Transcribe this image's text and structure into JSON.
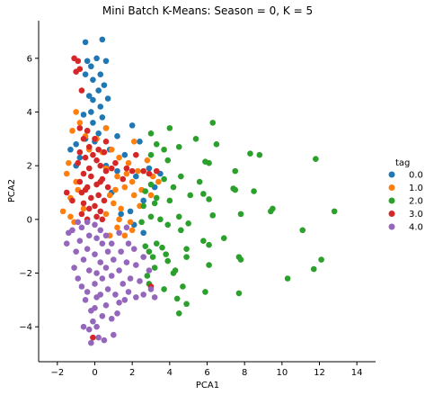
{
  "chart_data": {
    "type": "scatter",
    "title": "Mini Batch K-Means: Season = 0, K = 5",
    "xlabel": "PCA1",
    "ylabel": "PCA2",
    "xlim": [
      -3,
      15
    ],
    "ylim": [
      -5.3,
      7.4
    ],
    "xticks": [
      -2,
      0,
      2,
      4,
      6,
      8,
      10,
      12,
      14
    ],
    "yticks": [
      -4,
      -2,
      0,
      2,
      4,
      6
    ],
    "grid": false,
    "legend": {
      "title": "tag",
      "placement": "right"
    },
    "series": [
      {
        "name": "0.0",
        "color": "#1f77b4",
        "points": [
          [
            -0.5,
            6.6
          ],
          [
            0.4,
            6.7
          ],
          [
            0.1,
            6.0
          ],
          [
            -0.2,
            5.7
          ],
          [
            -0.4,
            5.9
          ],
          [
            0.6,
            5.9
          ],
          [
            0.3,
            5.4
          ],
          [
            -0.5,
            5.4
          ],
          [
            -0.1,
            5.2
          ],
          [
            0.5,
            5.0
          ],
          [
            0.2,
            4.8
          ],
          [
            -0.3,
            4.6
          ],
          [
            0.7,
            4.5
          ],
          [
            -0.1,
            4.45
          ],
          [
            0.3,
            4.2
          ],
          [
            -0.2,
            4.0
          ],
          [
            -0.6,
            3.9
          ],
          [
            0.4,
            3.8
          ],
          [
            -0.1,
            3.6
          ],
          [
            0.6,
            3.4
          ],
          [
            -0.4,
            3.3
          ],
          [
            0.2,
            3.2
          ],
          [
            -0.5,
            3.0
          ],
          [
            0.0,
            2.9
          ],
          [
            1.2,
            3.1
          ],
          [
            2.0,
            3.5
          ],
          [
            2.4,
            2.9
          ],
          [
            -1.0,
            2.8
          ],
          [
            -1.3,
            2.6
          ],
          [
            1.6,
            2.4
          ],
          [
            0.8,
            2.6
          ],
          [
            -0.8,
            2.3
          ],
          [
            2.9,
            1.9
          ],
          [
            2.2,
            1.6
          ],
          [
            1.2,
            1.8
          ],
          [
            0.6,
            2.0
          ],
          [
            2.6,
            0.7
          ],
          [
            1.9,
            0.3
          ],
          [
            0.9,
            1.0
          ],
          [
            1.4,
            0.2
          ],
          [
            2.1,
            -0.2
          ],
          [
            2.6,
            -0.5
          ],
          [
            3.2,
            1.2
          ],
          [
            -1.0,
            2.0
          ],
          [
            3.5,
            1.7
          ]
        ]
      },
      {
        "name": "1.0",
        "color": "#ff7f0e",
        "points": [
          [
            -1.0,
            4.0
          ],
          [
            -0.8,
            3.6
          ],
          [
            -1.2,
            3.3
          ],
          [
            -0.5,
            3.1
          ],
          [
            0.6,
            3.4
          ],
          [
            -1.4,
            2.1
          ],
          [
            -1.5,
            1.7
          ],
          [
            -1.7,
            0.3
          ],
          [
            -1.3,
            0.1
          ],
          [
            -1.3,
            0.8
          ],
          [
            -0.9,
            1.1
          ],
          [
            -1.1,
            -0.1
          ],
          [
            -0.6,
            0.4
          ],
          [
            0.9,
            2.6
          ],
          [
            1.3,
            2.3
          ],
          [
            1.8,
            2.1
          ],
          [
            2.3,
            1.8
          ],
          [
            2.8,
            2.2
          ],
          [
            3.1,
            1.6
          ],
          [
            3.4,
            1.4
          ],
          [
            1.6,
            1.2
          ],
          [
            2.1,
            0.9
          ],
          [
            1.0,
            0.6
          ],
          [
            1.4,
            0.4
          ],
          [
            2.4,
            0.5
          ],
          [
            1.9,
            -0.1
          ],
          [
            1.2,
            -0.3
          ],
          [
            1.6,
            -0.6
          ],
          [
            2.0,
            -0.4
          ],
          [
            0.8,
            -0.6
          ],
          [
            2.1,
            2.9
          ],
          [
            2.0,
            1.4
          ],
          [
            1.2,
            1.6
          ],
          [
            0.6,
            1.9
          ],
          [
            0.4,
            2.5
          ],
          [
            1.7,
            1.7
          ],
          [
            2.5,
            1.1
          ],
          [
            3.0,
            0.9
          ],
          [
            1.1,
            1.1
          ],
          [
            0.8,
            0.9
          ],
          [
            0.6,
            0.2
          ],
          [
            1.3,
            0.0
          ],
          [
            -0.3,
            2.6
          ],
          [
            0.1,
            3.0
          ],
          [
            -1.0,
            1.4
          ]
        ]
      },
      {
        "name": "2.0",
        "color": "#2ca02c",
        "points": [
          [
            6.3,
            3.6
          ],
          [
            4.0,
            3.4
          ],
          [
            3.0,
            3.2
          ],
          [
            5.4,
            3.0
          ],
          [
            3.3,
            2.8
          ],
          [
            6.5,
            2.8
          ],
          [
            3.7,
            2.6
          ],
          [
            4.5,
            2.7
          ],
          [
            8.3,
            2.45
          ],
          [
            8.8,
            2.4
          ],
          [
            3.0,
            2.4
          ],
          [
            3.9,
            2.2
          ],
          [
            5.9,
            2.15
          ],
          [
            6.1,
            2.1
          ],
          [
            11.8,
            2.25
          ],
          [
            7.5,
            1.8
          ],
          [
            4.6,
            1.6
          ],
          [
            3.7,
            1.5
          ],
          [
            5.6,
            1.4
          ],
          [
            3.0,
            1.3
          ],
          [
            4.2,
            1.2
          ],
          [
            7.5,
            1.1
          ],
          [
            8.5,
            1.05
          ],
          [
            7.4,
            1.15
          ],
          [
            2.7,
            1.05
          ],
          [
            5.8,
            0.95
          ],
          [
            3.3,
            0.8
          ],
          [
            6.1,
            0.75
          ],
          [
            5.1,
            0.9
          ],
          [
            4.0,
            0.7
          ],
          [
            2.6,
            0.5
          ],
          [
            3.2,
            0.6
          ],
          [
            12.8,
            0.3
          ],
          [
            9.5,
            0.4
          ],
          [
            9.4,
            0.3
          ],
          [
            7.8,
            0.2
          ],
          [
            6.3,
            0.15
          ],
          [
            3.0,
            0.1
          ],
          [
            4.5,
            0.1
          ],
          [
            3.5,
            0.0
          ],
          [
            5.0,
            -0.15
          ],
          [
            2.5,
            -0.1
          ],
          [
            3.9,
            -0.2
          ],
          [
            4.6,
            -0.4
          ],
          [
            11.1,
            -0.4
          ],
          [
            6.9,
            -0.7
          ],
          [
            5.8,
            -0.8
          ],
          [
            6.1,
            -0.95
          ],
          [
            4.9,
            -1.1
          ],
          [
            3.6,
            -1.05
          ],
          [
            3.3,
            -0.9
          ],
          [
            3.8,
            -1.3
          ],
          [
            4.9,
            -1.4
          ],
          [
            2.7,
            -1.0
          ],
          [
            7.7,
            -1.4
          ],
          [
            7.8,
            -1.5
          ],
          [
            12.1,
            -1.5
          ],
          [
            2.9,
            -1.2
          ],
          [
            6.1,
            -1.7
          ],
          [
            4.3,
            -1.9
          ],
          [
            4.2,
            -2.0
          ],
          [
            11.7,
            -1.85
          ],
          [
            3.2,
            -1.8
          ],
          [
            2.8,
            -2.1
          ],
          [
            10.3,
            -2.2
          ],
          [
            2.9,
            -2.4
          ],
          [
            4.7,
            -2.5
          ],
          [
            3.7,
            -2.6
          ],
          [
            5.9,
            -2.7
          ],
          [
            7.7,
            -2.75
          ],
          [
            4.4,
            -2.95
          ],
          [
            4.9,
            -3.15
          ],
          [
            4.5,
            -3.5
          ],
          [
            3.9,
            -1.55
          ],
          [
            3.1,
            -1.4
          ]
        ]
      },
      {
        "name": "3.0",
        "color": "#d62728",
        "points": [
          [
            -1.1,
            6.0
          ],
          [
            -0.9,
            5.9
          ],
          [
            -0.8,
            5.6
          ],
          [
            -1.0,
            5.5
          ],
          [
            -0.7,
            4.8
          ],
          [
            -0.8,
            3.4
          ],
          [
            -0.4,
            3.3
          ],
          [
            -0.6,
            3.0
          ],
          [
            0.0,
            3.0
          ],
          [
            -0.3,
            2.7
          ],
          [
            0.2,
            2.6
          ],
          [
            -0.8,
            2.5
          ],
          [
            0.5,
            2.5
          ],
          [
            -0.5,
            2.3
          ],
          [
            0.1,
            2.2
          ],
          [
            -0.9,
            2.1
          ],
          [
            0.3,
            2.0
          ],
          [
            -0.3,
            1.9
          ],
          [
            0.6,
            1.8
          ],
          [
            -0.6,
            1.7
          ],
          [
            0.9,
            1.9
          ],
          [
            -0.2,
            1.6
          ],
          [
            0.4,
            1.5
          ],
          [
            -0.8,
            1.4
          ],
          [
            0.1,
            1.3
          ],
          [
            -0.4,
            1.2
          ],
          [
            0.7,
            1.2
          ],
          [
            -0.7,
            1.0
          ],
          [
            0.2,
            0.9
          ],
          [
            -0.2,
            0.8
          ],
          [
            0.5,
            0.7
          ],
          [
            -0.6,
            0.6
          ],
          [
            0.0,
            0.5
          ],
          [
            -0.3,
            0.4
          ],
          [
            0.3,
            0.3
          ],
          [
            -0.7,
            0.2
          ],
          [
            0.1,
            0.1
          ],
          [
            -0.4,
            0.0
          ],
          [
            0.4,
            0.0
          ],
          [
            1.1,
            2.1
          ],
          [
            1.7,
            1.9
          ],
          [
            2.0,
            1.8
          ],
          [
            2.6,
            1.8
          ],
          [
            2.9,
            1.7
          ],
          [
            3.3,
            1.8
          ],
          [
            2.2,
            2.4
          ],
          [
            1.5,
            1.5
          ],
          [
            -1.5,
            1.0
          ],
          [
            -1.2,
            0.7
          ],
          [
            3.0,
            -2.5
          ],
          [
            -0.1,
            -4.4
          ],
          [
            0.3,
            1.4
          ],
          [
            -0.1,
            2.4
          ],
          [
            0.6,
            2.9
          ],
          [
            -0.5,
            1.1
          ]
        ]
      },
      {
        "name": "4.0",
        "color": "#9467bd",
        "points": [
          [
            -1.5,
            -0.9
          ],
          [
            -1.2,
            -0.4
          ],
          [
            -1.0,
            -1.2
          ],
          [
            -1.1,
            -1.8
          ],
          [
            -0.9,
            -2.2
          ],
          [
            -0.7,
            -0.3
          ],
          [
            -0.8,
            -0.8
          ],
          [
            -0.6,
            -1.5
          ],
          [
            -0.7,
            -2.5
          ],
          [
            -0.5,
            -3.0
          ],
          [
            -0.4,
            -0.1
          ],
          [
            -0.3,
            -0.6
          ],
          [
            -0.4,
            -1.1
          ],
          [
            -0.3,
            -1.9
          ],
          [
            -0.4,
            -2.7
          ],
          [
            -0.2,
            -3.4
          ],
          [
            -0.1,
            -3.8
          ],
          [
            -0.3,
            -4.1
          ],
          [
            -0.2,
            -4.6
          ],
          [
            0.0,
            -0.2
          ],
          [
            0.1,
            -0.7
          ],
          [
            0.0,
            -1.3
          ],
          [
            0.1,
            -2.0
          ],
          [
            0.0,
            -2.4
          ],
          [
            0.1,
            -2.9
          ],
          [
            0.0,
            -3.3
          ],
          [
            0.1,
            -4.0
          ],
          [
            0.3,
            -0.4
          ],
          [
            0.4,
            -0.9
          ],
          [
            0.3,
            -1.6
          ],
          [
            0.4,
            -2.2
          ],
          [
            0.3,
            -2.8
          ],
          [
            0.4,
            -3.6
          ],
          [
            0.6,
            -0.6
          ],
          [
            0.7,
            -1.2
          ],
          [
            0.6,
            -1.8
          ],
          [
            0.7,
            -2.6
          ],
          [
            0.6,
            -3.2
          ],
          [
            0.9,
            -0.9
          ],
          [
            1.0,
            -1.5
          ],
          [
            0.9,
            -2.1
          ],
          [
            1.1,
            -2.8
          ],
          [
            0.9,
            -3.7
          ],
          [
            1.0,
            -4.3
          ],
          [
            1.3,
            -0.5
          ],
          [
            1.4,
            -1.2
          ],
          [
            1.3,
            -1.9
          ],
          [
            1.5,
            -2.4
          ],
          [
            1.3,
            -3.1
          ],
          [
            1.7,
            -0.3
          ],
          [
            1.8,
            -0.9
          ],
          [
            1.7,
            -1.6
          ],
          [
            1.9,
            -2.2
          ],
          [
            1.8,
            -2.7
          ],
          [
            2.1,
            -1.1
          ],
          [
            2.2,
            -1.7
          ],
          [
            2.4,
            -2.3
          ],
          [
            2.6,
            -1.4
          ],
          [
            2.9,
            -1.9
          ],
          [
            3.0,
            -2.6
          ],
          [
            2.6,
            -2.8
          ],
          [
            3.2,
            -2.9
          ],
          [
            2.2,
            -2.9
          ],
          [
            -0.9,
            -0.1
          ],
          [
            -1.4,
            -0.5
          ],
          [
            0.2,
            -4.4
          ],
          [
            -0.6,
            -4.0
          ],
          [
            0.5,
            -4.5
          ],
          [
            1.2,
            -3.5
          ],
          [
            1.6,
            -3.0
          ]
        ]
      }
    ]
  }
}
